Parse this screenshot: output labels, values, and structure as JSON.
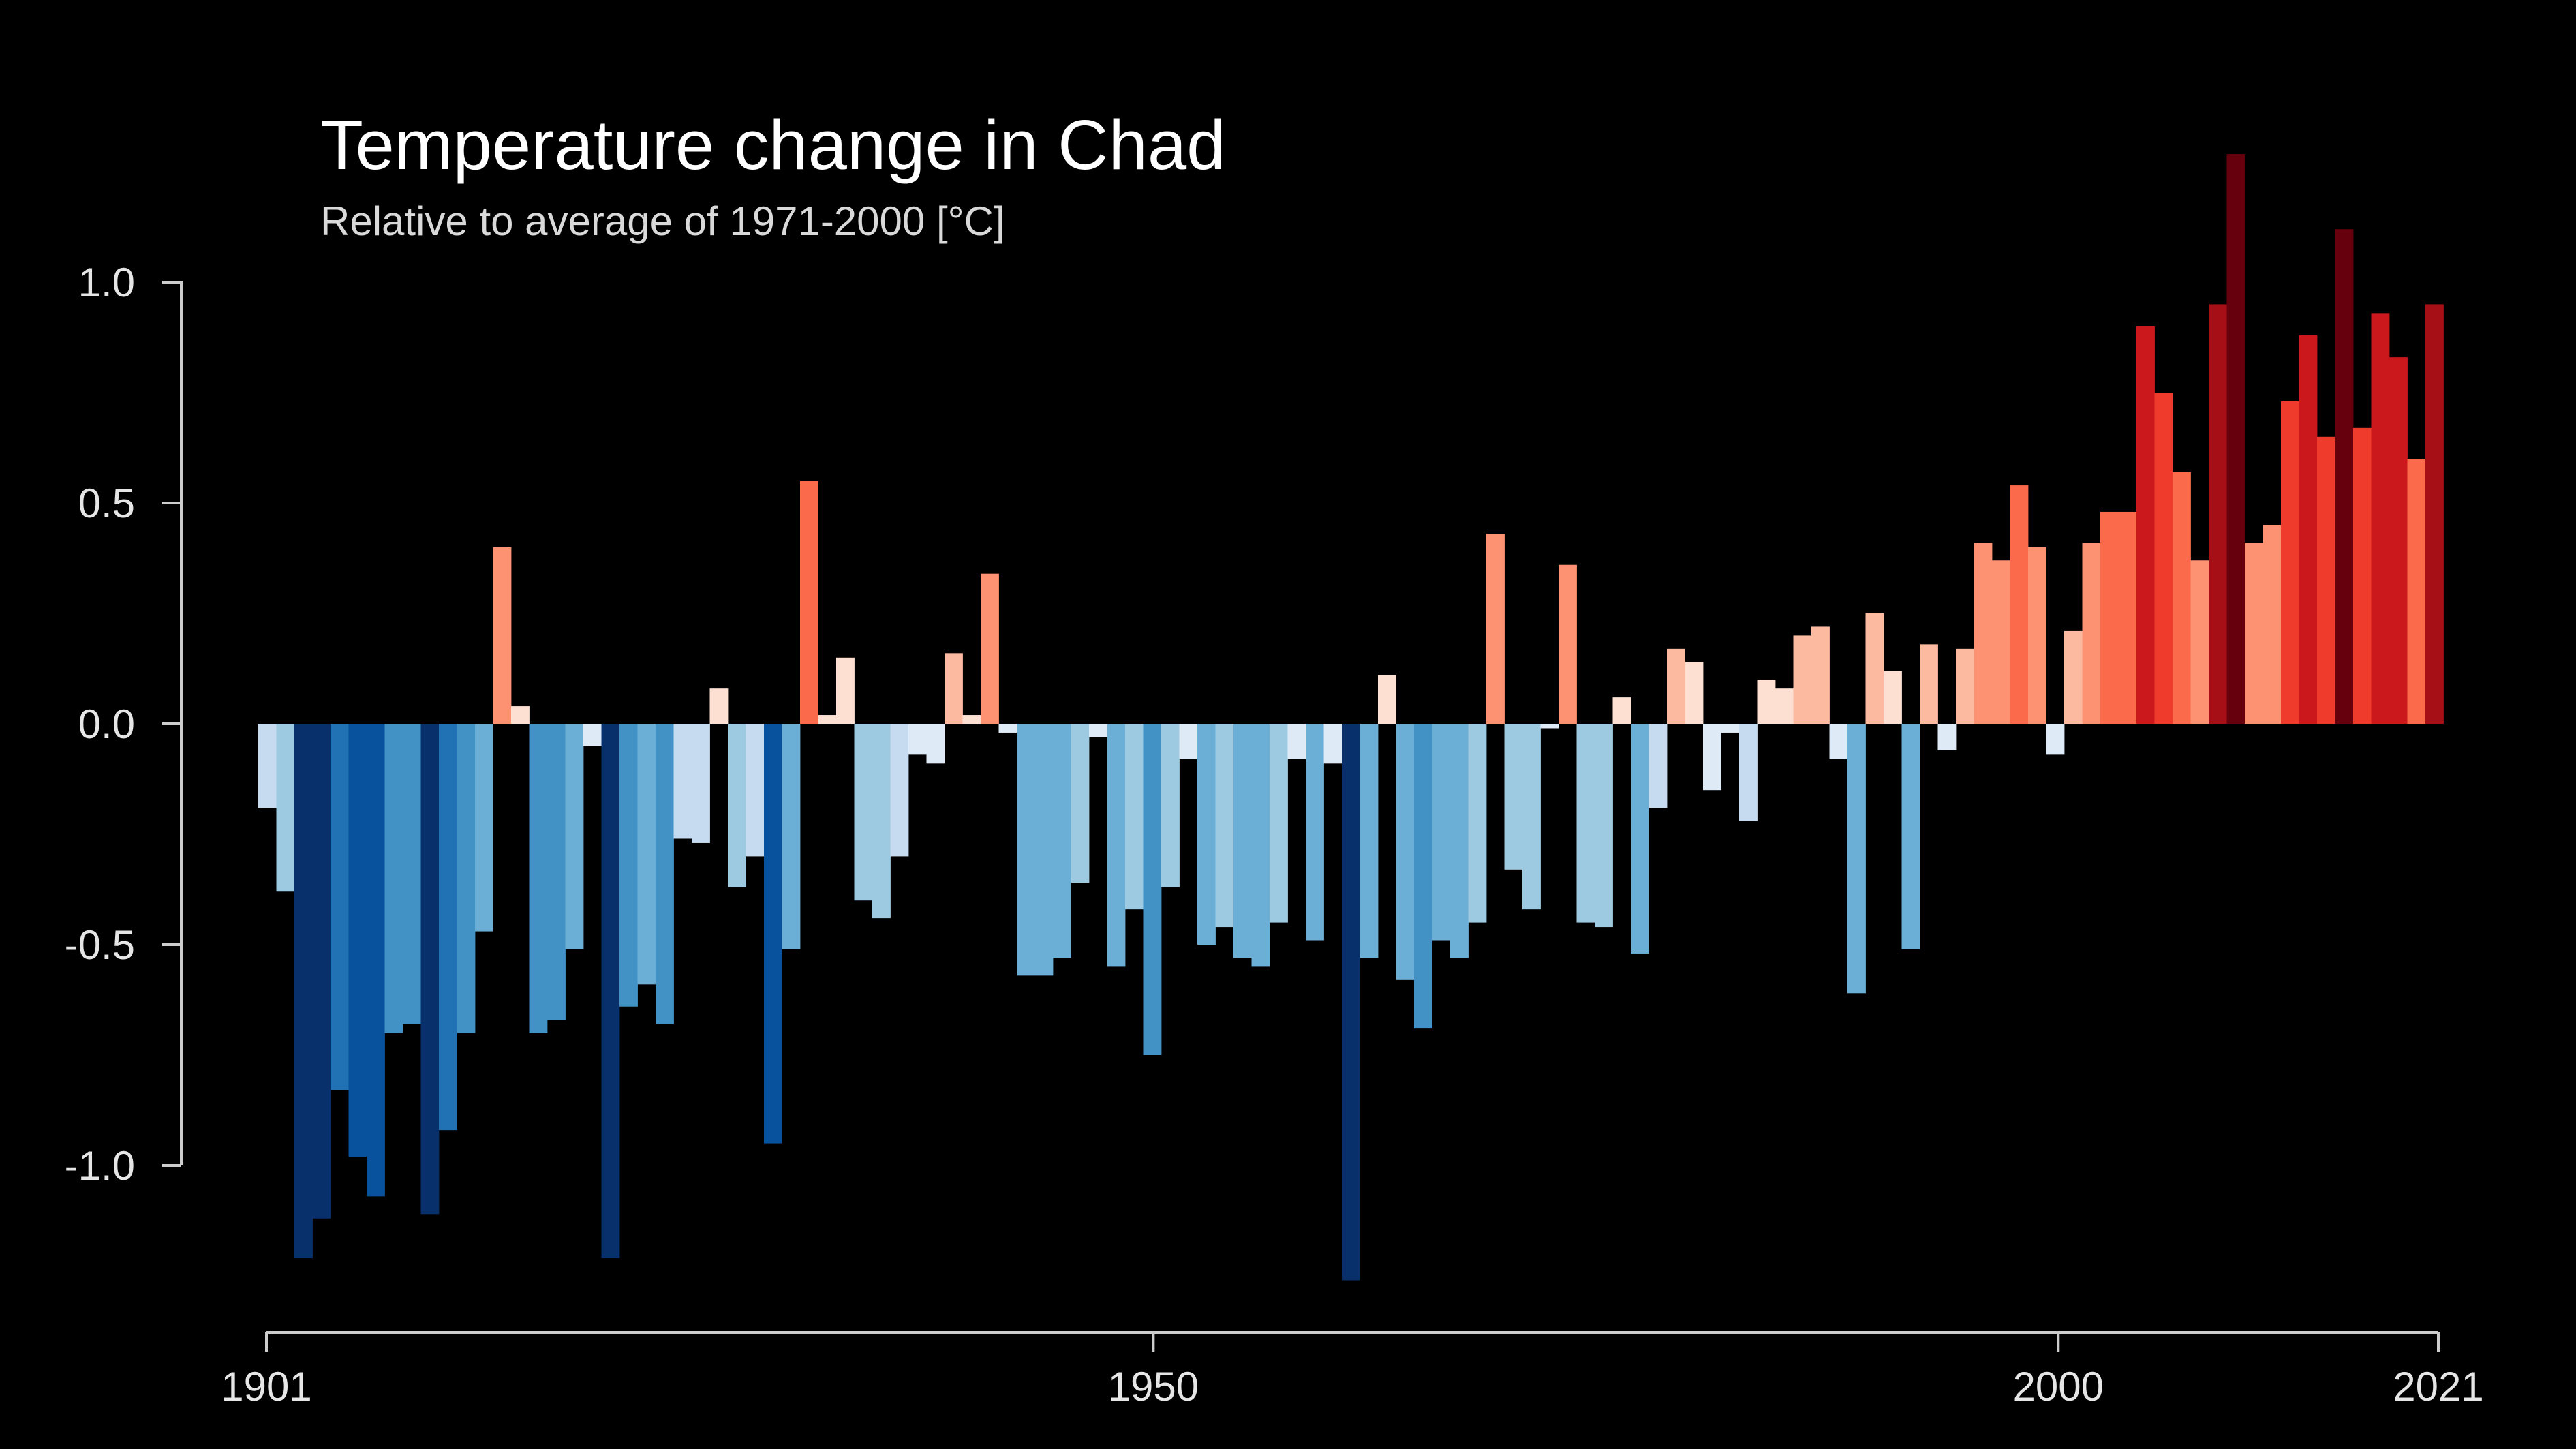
{
  "chart_data": {
    "type": "bar",
    "title": "Temperature change in Chad",
    "subtitle": "Relative to average of 1971-2000  [°C]",
    "xlabel": "",
    "ylabel": "",
    "x_start": 1901,
    "x_end": 2021,
    "xlim": [
      1901,
      2021
    ],
    "ylim": [
      -1.35,
      1.35
    ],
    "x_ticks": [
      "1901",
      "1950",
      "2000",
      "2021"
    ],
    "y_ticks": [
      "1.0",
      "0.5",
      "0.0",
      "-0.5",
      "-1.0"
    ],
    "grid": false,
    "legend": "none",
    "colors": {
      "background": "#000000",
      "cold_extreme": "#08306b",
      "neutral_cold": "#deebf7",
      "neutral_warm": "#fee0d2",
      "warm_extreme": "#67000d"
    },
    "values": [
      -0.19,
      -0.38,
      -1.21,
      -1.12,
      -0.83,
      -0.98,
      -1.07,
      -0.7,
      -0.68,
      -1.11,
      -0.92,
      -0.7,
      -0.47,
      0.4,
      0.04,
      -0.7,
      -0.67,
      -0.51,
      -0.05,
      -1.21,
      -0.64,
      -0.59,
      -0.68,
      -0.26,
      -0.27,
      0.08,
      -0.37,
      -0.3,
      -0.95,
      -0.51,
      0.55,
      0.02,
      0.15,
      -0.4,
      -0.44,
      -0.3,
      -0.07,
      -0.09,
      0.16,
      0.02,
      0.34,
      -0.02,
      -0.57,
      -0.57,
      -0.53,
      -0.36,
      -0.03,
      -0.55,
      -0.42,
      -0.75,
      -0.37,
      -0.08,
      -0.5,
      -0.46,
      -0.53,
      -0.55,
      -0.45,
      -0.08,
      -0.49,
      -0.09,
      -1.26,
      -0.53,
      0.11,
      -0.58,
      -0.69,
      -0.49,
      -0.53,
      -0.45,
      0.43,
      -0.33,
      -0.42,
      -0.01,
      0.36,
      -0.45,
      -0.46,
      0.06,
      -0.52,
      -0.19,
      0.17,
      0.14,
      -0.15,
      -0.02,
      -0.22,
      0.1,
      0.08,
      0.2,
      0.22,
      -0.08,
      -0.61,
      0.25,
      0.12,
      -0.51,
      0.18,
      -0.06,
      0.17,
      0.41,
      0.37,
      0.54,
      0.4,
      -0.07,
      0.21,
      0.41,
      0.48,
      0.48,
      0.9,
      0.75,
      0.57,
      0.37,
      0.95,
      1.29,
      0.41,
      0.45,
      0.73,
      0.88,
      0.65,
      1.12,
      0.67,
      0.93,
      0.83,
      0.6,
      0.95
    ]
  }
}
